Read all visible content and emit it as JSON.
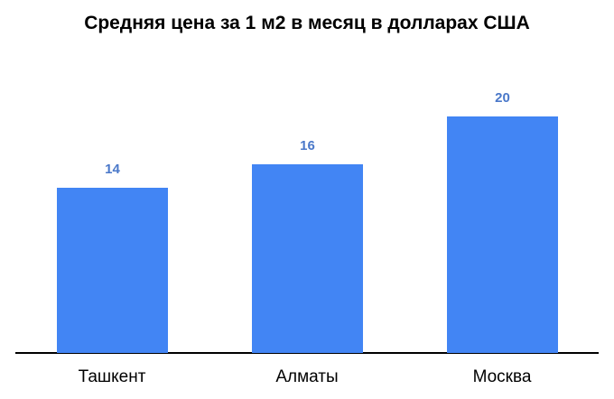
{
  "chart_data": {
    "type": "bar",
    "title": "Средняя цена за 1 м2 в месяц в долларах США",
    "categories": [
      "Ташкент",
      "Алматы",
      "Москва"
    ],
    "values": [
      14,
      16,
      20
    ],
    "xlabel": "",
    "ylabel": "",
    "ylim": [
      0,
      22
    ],
    "grid": false,
    "legend": null,
    "bar_color": "#4285f4",
    "label_color": "#4a78c9"
  }
}
